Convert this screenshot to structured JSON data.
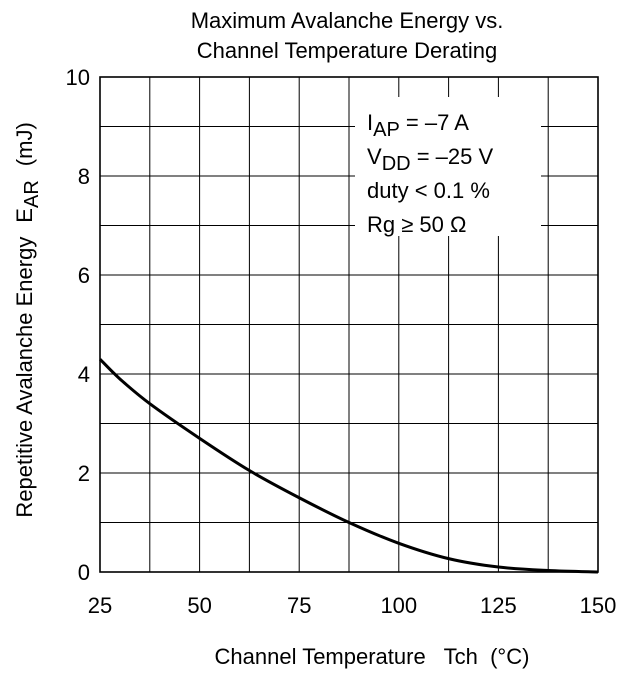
{
  "chart_data": {
    "type": "line",
    "title_lines": [
      "Maximum Avalanche Energy vs.",
      "Channel Temperature Derating"
    ],
    "xlabel": "Channel Temperature   Tch  (°C)",
    "ylabel": "Repetitive Avalanche Energy",
    "ylabel_symbol_main": "E",
    "ylabel_symbol_sub": "AR",
    "ylabel_unit": "(mJ)",
    "xlim": [
      25,
      150
    ],
    "ylim": [
      0,
      10
    ],
    "x_ticks": [
      25,
      50,
      75,
      100,
      125,
      150
    ],
    "y_ticks": [
      0,
      2,
      4,
      6,
      8,
      10
    ],
    "x_tick_labels": [
      "25",
      "50",
      "75",
      "100",
      "125",
      "150"
    ],
    "y_tick_labels": [
      "0",
      "2",
      "4",
      "6",
      "8",
      "10"
    ],
    "x_minor_step": 12.5,
    "y_minor_step": 1,
    "grid": true,
    "series": [
      {
        "x": [
          25,
          30,
          37.5,
          50,
          62.5,
          75,
          87.5,
          100,
          112.5,
          125,
          137.5,
          150
        ],
        "values": [
          4.3,
          3.9,
          3.4,
          2.7,
          2.05,
          1.5,
          1.0,
          0.58,
          0.27,
          0.1,
          0.03,
          0.0
        ]
      }
    ],
    "annotations": [
      {
        "main": "I",
        "sub": "AP",
        "rest": " = –7 A"
      },
      {
        "main": "V",
        "sub": "DD",
        "rest": " = –25 V"
      },
      {
        "main": "duty < 0.1 %",
        "sub": "",
        "rest": ""
      },
      {
        "main": "Rg ≥ 50 Ω",
        "sub": "",
        "rest": ""
      }
    ]
  }
}
